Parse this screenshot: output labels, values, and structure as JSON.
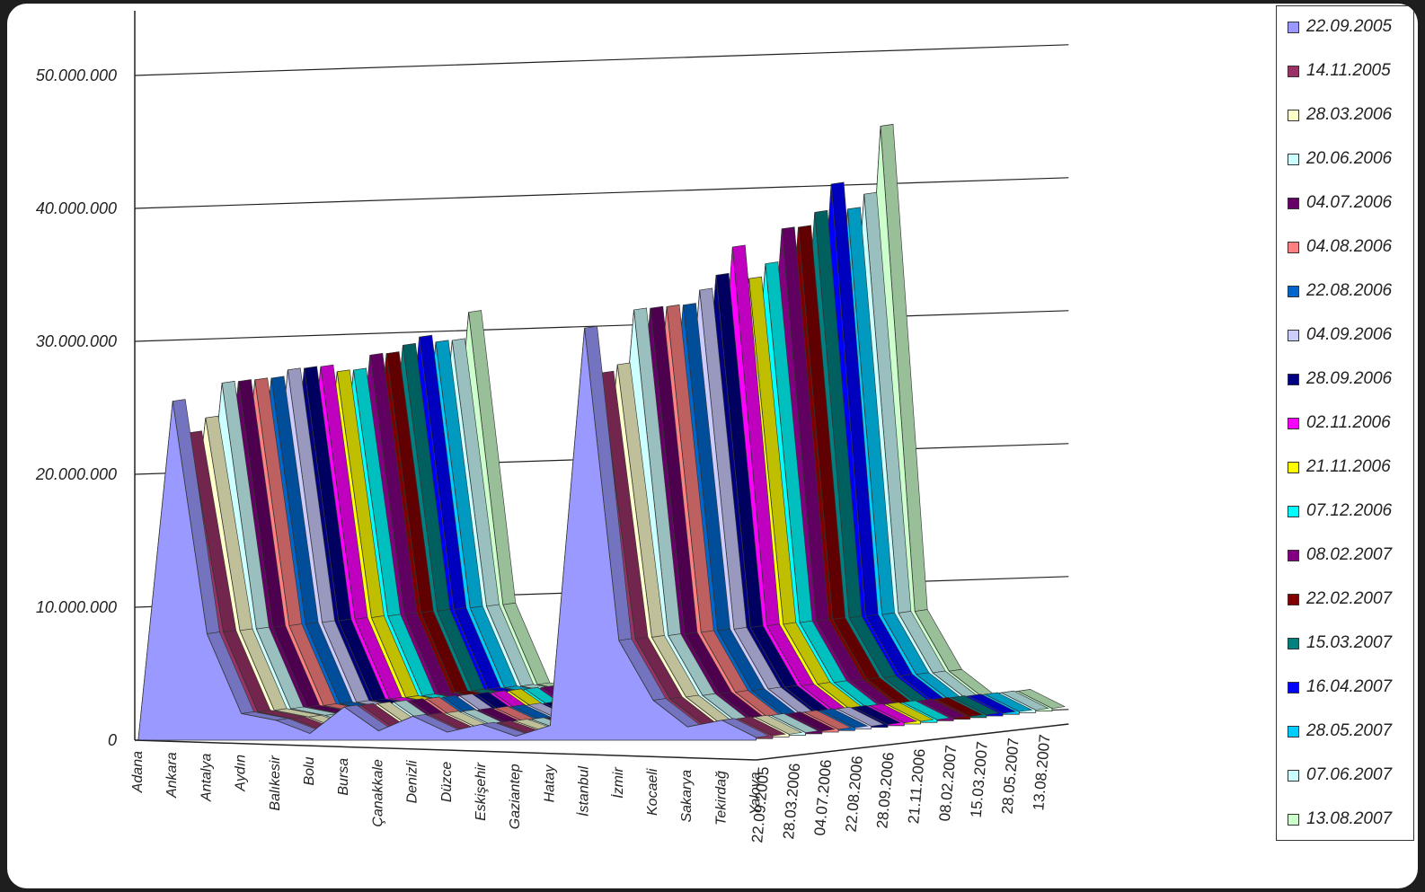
{
  "chart_data": {
    "type": "area",
    "variant": "3d-area",
    "title": "",
    "xlabel": "",
    "ylabel": "",
    "ylim": [
      0,
      50000000
    ],
    "y_ticks": [
      "0",
      "10.000.000",
      "20.000.000",
      "30.000.000",
      "40.000.000",
      "50.000.000"
    ],
    "grid": true,
    "legend_position": "right",
    "categories": [
      "Adana",
      "Ankara",
      "Antalya",
      "Aydın",
      "Balıkesir",
      "Bolu",
      "Bursa",
      "Çanakkale",
      "Denizli",
      "Düzce",
      "Eskişehir",
      "Gaziantep",
      "Hatay",
      "İstanbul",
      "İzmir",
      "Kocaeli",
      "Sakarya",
      "Tekirdağ",
      "Yalova"
    ],
    "depth_ticks": [
      "22.09.2005",
      "28.03.2006",
      "04.07.2006",
      "22.08.2006",
      "28.09.2006",
      "21.11.2006",
      "08.02.2007",
      "15.03.2007",
      "28.05.2007",
      "13.08.2007"
    ],
    "series": [
      {
        "name": "22.09.2005",
        "color": "#9999FF",
        "values": [
          100000,
          25500000,
          8000000,
          2000000,
          1500000,
          500000,
          2500000,
          700000,
          1800000,
          600000,
          1200000,
          300000,
          1100000,
          31000000,
          7500000,
          3000000,
          1000000,
          1500000,
          200000
        ]
      },
      {
        "name": "14.11.2005",
        "color": "#993366",
        "values": [
          100000,
          23000000,
          8000000,
          2000000,
          1500000,
          500000,
          2500000,
          700000,
          1800000,
          600000,
          1200000,
          300000,
          1100000,
          27500000,
          7500000,
          3000000,
          1000000,
          1500000,
          200000
        ]
      },
      {
        "name": "28.03.2006",
        "color": "#FFFFCC",
        "values": [
          100000,
          24000000,
          8000000,
          2000000,
          1500000,
          500000,
          2500000,
          700000,
          1800000,
          600000,
          1200000,
          300000,
          1100000,
          28000000,
          7500000,
          3000000,
          1000000,
          1500000,
          200000
        ]
      },
      {
        "name": "20.06.2006",
        "color": "#CCFFFF",
        "values": [
          100000,
          26500000,
          8000000,
          2000000,
          1500000,
          500000,
          2500000,
          700000,
          1800000,
          600000,
          1200000,
          300000,
          1100000,
          32000000,
          7500000,
          3000000,
          1000000,
          1500000,
          200000
        ]
      },
      {
        "name": "04.07.2006",
        "color": "#660066",
        "values": [
          100000,
          26500000,
          8000000,
          2000000,
          1500000,
          500000,
          2500000,
          700000,
          1800000,
          600000,
          1200000,
          300000,
          1100000,
          32000000,
          7500000,
          3000000,
          1000000,
          1500000,
          200000
        ]
      },
      {
        "name": "04.08.2006",
        "color": "#FF8080",
        "values": [
          100000,
          26500000,
          8000000,
          2000000,
          1500000,
          500000,
          2500000,
          700000,
          1800000,
          600000,
          1200000,
          300000,
          1100000,
          32000000,
          7500000,
          3000000,
          1000000,
          1500000,
          200000
        ]
      },
      {
        "name": "22.08.2006",
        "color": "#0066CC",
        "values": [
          100000,
          26500000,
          8000000,
          2000000,
          1500000,
          500000,
          2500000,
          700000,
          1800000,
          600000,
          1200000,
          300000,
          1100000,
          32000000,
          7500000,
          3000000,
          1000000,
          1500000,
          200000
        ]
      },
      {
        "name": "04.09.2006",
        "color": "#CCCCFF",
        "values": [
          100000,
          27000000,
          8000000,
          2000000,
          1500000,
          500000,
          2500000,
          700000,
          1800000,
          600000,
          1200000,
          300000,
          1100000,
          33000000,
          7500000,
          3000000,
          1000000,
          1500000,
          200000
        ]
      },
      {
        "name": "28.09.2006",
        "color": "#000080",
        "values": [
          100000,
          27000000,
          8000000,
          2000000,
          1500000,
          500000,
          2500000,
          700000,
          1800000,
          600000,
          1200000,
          300000,
          1100000,
          34000000,
          7500000,
          3000000,
          1000000,
          1500000,
          200000
        ]
      },
      {
        "name": "02.11.2006",
        "color": "#FF00FF",
        "values": [
          100000,
          27000000,
          8000000,
          2000000,
          1500000,
          500000,
          2500000,
          700000,
          1800000,
          600000,
          1200000,
          300000,
          1100000,
          36000000,
          7500000,
          3000000,
          1000000,
          1500000,
          200000
        ]
      },
      {
        "name": "21.11.2006",
        "color": "#FFFF00",
        "values": [
          100000,
          26500000,
          8000000,
          2000000,
          1500000,
          500000,
          2500000,
          700000,
          1800000,
          600000,
          1200000,
          300000,
          1100000,
          33500000,
          7500000,
          3000000,
          1000000,
          1500000,
          200000
        ]
      },
      {
        "name": "07.12.2006",
        "color": "#00FFFF",
        "values": [
          100000,
          26500000,
          8000000,
          2000000,
          1500000,
          500000,
          2500000,
          700000,
          1800000,
          600000,
          1200000,
          300000,
          1100000,
          34500000,
          7500000,
          3000000,
          1000000,
          1500000,
          200000
        ]
      },
      {
        "name": "08.02.2007",
        "color": "#800080",
        "values": [
          100000,
          27500000,
          8000000,
          2000000,
          1500000,
          500000,
          2500000,
          700000,
          1800000,
          600000,
          1200000,
          300000,
          1100000,
          37000000,
          7500000,
          3000000,
          1000000,
          1500000,
          200000
        ]
      },
      {
        "name": "22.02.2007",
        "color": "#800000",
        "values": [
          100000,
          27500000,
          8000000,
          2000000,
          1500000,
          500000,
          2500000,
          700000,
          1800000,
          600000,
          1200000,
          300000,
          1100000,
          37000000,
          7500000,
          3000000,
          1000000,
          1500000,
          200000
        ]
      },
      {
        "name": "15.03.2007",
        "color": "#008080",
        "values": [
          100000,
          28000000,
          8000000,
          2000000,
          1500000,
          500000,
          2500000,
          700000,
          1800000,
          600000,
          1200000,
          300000,
          1100000,
          38000000,
          7500000,
          3000000,
          1000000,
          1500000,
          200000
        ]
      },
      {
        "name": "16.04.2007",
        "color": "#0000FF",
        "values": [
          100000,
          28500000,
          8000000,
          2000000,
          1500000,
          500000,
          2500000,
          700000,
          1800000,
          600000,
          1200000,
          300000,
          1100000,
          40000000,
          7500000,
          3000000,
          1000000,
          1500000,
          200000
        ]
      },
      {
        "name": "28.05.2007",
        "color": "#00CCFF",
        "values": [
          100000,
          28000000,
          8000000,
          2000000,
          1500000,
          500000,
          2500000,
          700000,
          1800000,
          600000,
          1200000,
          300000,
          1100000,
          38000000,
          7500000,
          3000000,
          1000000,
          1500000,
          200000
        ]
      },
      {
        "name": "07.06.2007",
        "color": "#CCFFFF",
        "values": [
          100000,
          28000000,
          8000000,
          2000000,
          1500000,
          500000,
          2500000,
          700000,
          1800000,
          600000,
          1200000,
          300000,
          1100000,
          39000000,
          7500000,
          3000000,
          1000000,
          1500000,
          200000
        ]
      },
      {
        "name": "13.08.2007",
        "color": "#CCFFCC",
        "values": [
          100000,
          30000000,
          8000000,
          2000000,
          1500000,
          500000,
          2500000,
          700000,
          1800000,
          600000,
          1200000,
          300000,
          1100000,
          44000000,
          7500000,
          3000000,
          1000000,
          1500000,
          200000
        ]
      }
    ]
  }
}
